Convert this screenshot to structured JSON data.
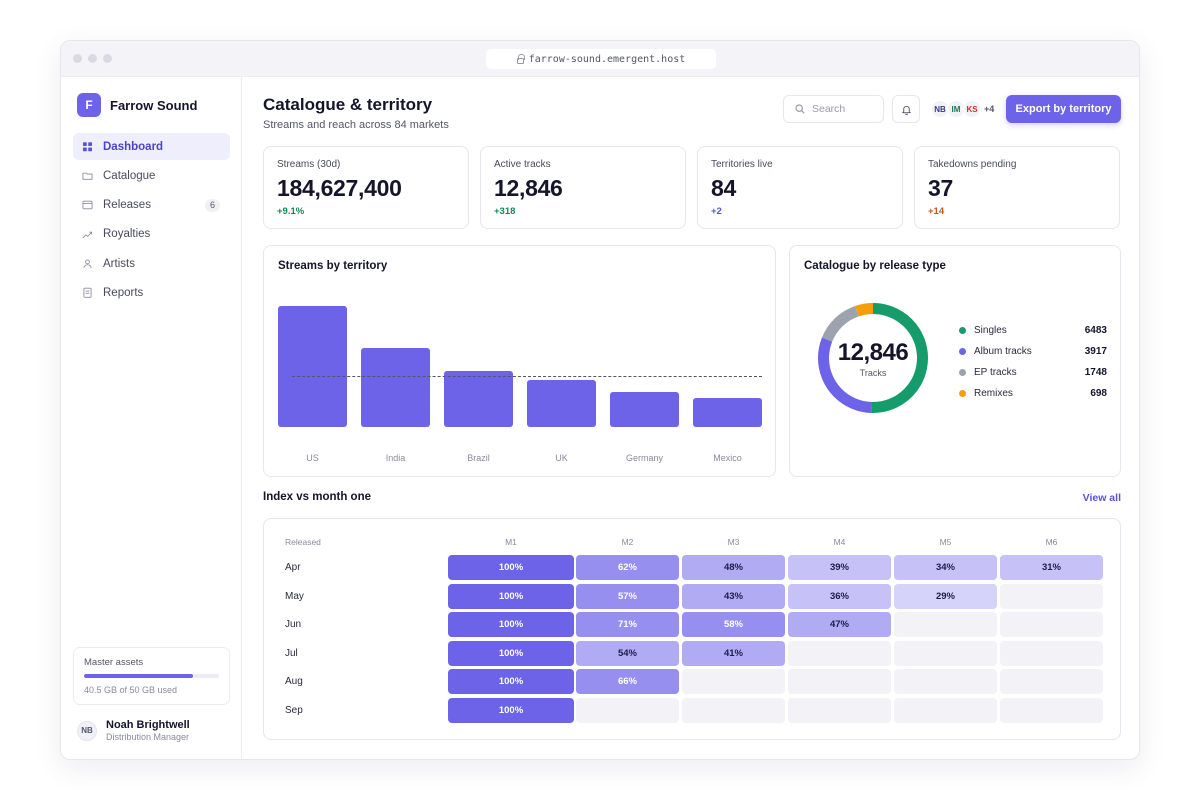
{
  "browser": {
    "url": "farrow-sound.emergent.host"
  },
  "brand": {
    "logo_letter": "F",
    "name": "Farrow Sound"
  },
  "nav": [
    {
      "label": "Dashboard",
      "icon": "grid-icon",
      "active": true
    },
    {
      "label": "Catalogue",
      "icon": "folder-icon"
    },
    {
      "label": "Releases",
      "icon": "calendar-icon",
      "badge": "6"
    },
    {
      "label": "Royalties",
      "icon": "trend-icon"
    },
    {
      "label": "Artists",
      "icon": "person-icon"
    },
    {
      "label": "Reports",
      "icon": "document-icon"
    }
  ],
  "storage": {
    "label": "Master assets",
    "used_fraction": 0.81,
    "text": "40.5 GB of 50 GB used"
  },
  "user": {
    "initials": "NB",
    "name": "Noah Brightwell",
    "role": "Distribution Manager"
  },
  "header": {
    "title": "Catalogue & territory",
    "subtitle": "Streams and reach across 84 markets",
    "search_placeholder": "Search",
    "avatars": [
      "NB",
      "IM",
      "KS"
    ],
    "avatar_colors": [
      "#3a3a8e",
      "#0f7a4a",
      "#c0392b"
    ],
    "avatars_more": "+4",
    "export_label": "Export by territory"
  },
  "stats": [
    {
      "label": "Streams (30d)",
      "value": "184,627,400",
      "delta": "+9.1%",
      "delta_color": "#0f8a55"
    },
    {
      "label": "Active tracks",
      "value": "12,846",
      "delta": "+318",
      "delta_color": "#0f8a55"
    },
    {
      "label": "Territories live",
      "value": "84",
      "delta": "+2",
      "delta_color": "#5a52d8"
    },
    {
      "label": "Takedowns pending",
      "value": "37",
      "delta": "+14",
      "delta_color": "#c05a15"
    }
  ],
  "bar_card": {
    "title": "Streams by territory"
  },
  "donut_card": {
    "title": "Catalogue by release type",
    "center_value": "12,846",
    "center_label": "Tracks",
    "items": [
      {
        "label": "Singles",
        "value": "6483",
        "color": "#169c6a"
      },
      {
        "label": "Album tracks",
        "value": "3917",
        "color": "#6c63e8"
      },
      {
        "label": "EP tracks",
        "value": "1748",
        "color": "#9ca3af"
      },
      {
        "label": "Remixes",
        "value": "698",
        "color": "#f59e0b"
      }
    ]
  },
  "cohort": {
    "title": "Index vs month one",
    "view_all": "View all",
    "row_header": "Released",
    "columns": [
      "M1",
      "M2",
      "M3",
      "M4",
      "M5",
      "M6"
    ],
    "rows": [
      {
        "label": "Apr",
        "values": [
          100,
          62,
          48,
          39,
          34,
          31
        ]
      },
      {
        "label": "May",
        "values": [
          100,
          57,
          43,
          36,
          29
        ]
      },
      {
        "label": "Jun",
        "values": [
          100,
          71,
          58,
          47
        ]
      },
      {
        "label": "Jul",
        "values": [
          100,
          54,
          41
        ]
      },
      {
        "label": "Aug",
        "values": [
          100,
          66
        ]
      },
      {
        "label": "Sep",
        "values": [
          100
        ]
      }
    ]
  },
  "chart_data": {
    "type": "bar",
    "title": "Streams by territory",
    "categories": [
      "US",
      "India",
      "Brazil",
      "UK",
      "Germany",
      "Mexico"
    ],
    "values": [
      100,
      65,
      46,
      39,
      29,
      24
    ],
    "reference_line": 42,
    "ylim": [
      0,
      100
    ],
    "grid": false
  }
}
